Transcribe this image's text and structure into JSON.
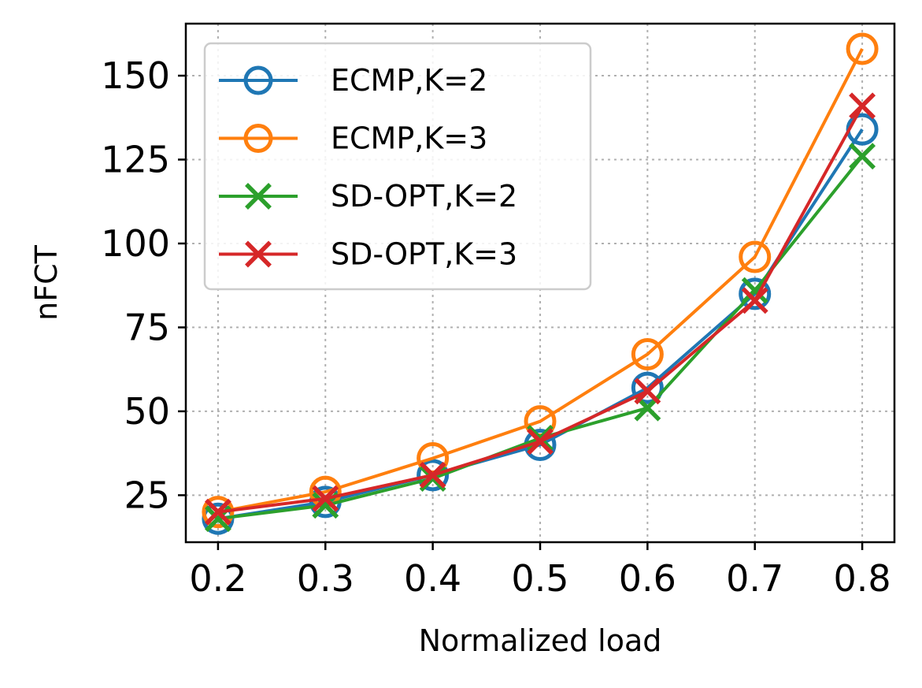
{
  "chart_data": {
    "type": "line",
    "xlabel": "Normalized load",
    "ylabel": "nFCT",
    "x": [
      0.2,
      0.3,
      0.4,
      0.5,
      0.6,
      0.7,
      0.8
    ],
    "x_tick_labels": [
      "0.2",
      "0.3",
      "0.4",
      "0.5",
      "0.6",
      "0.7",
      "0.8"
    ],
    "y_ticks": [
      25,
      50,
      75,
      100,
      125,
      150
    ],
    "y_tick_labels": [
      "25",
      "50",
      "75",
      "100",
      "125",
      "150"
    ],
    "xlim": [
      0.17,
      0.83
    ],
    "ylim": [
      11,
      165.5
    ],
    "grid": true,
    "legend_position": "top-left",
    "series": [
      {
        "name": "ECMP,K=2",
        "color": "#1f77b4",
        "marker": "circle",
        "values": [
          18,
          23,
          31,
          40,
          57,
          85,
          134
        ]
      },
      {
        "name": "ECMP,K=3",
        "color": "#ff7f0e",
        "marker": "circle",
        "values": [
          20,
          26,
          36,
          47,
          67,
          96,
          158
        ]
      },
      {
        "name": "SD-OPT,K=2",
        "color": "#2ca02c",
        "marker": "x",
        "values": [
          18,
          22,
          30,
          42,
          51,
          86,
          126
        ]
      },
      {
        "name": "SD-OPT,K=3",
        "color": "#d62728",
        "marker": "x",
        "values": [
          20,
          24,
          31,
          41,
          56,
          83,
          141
        ]
      }
    ]
  }
}
